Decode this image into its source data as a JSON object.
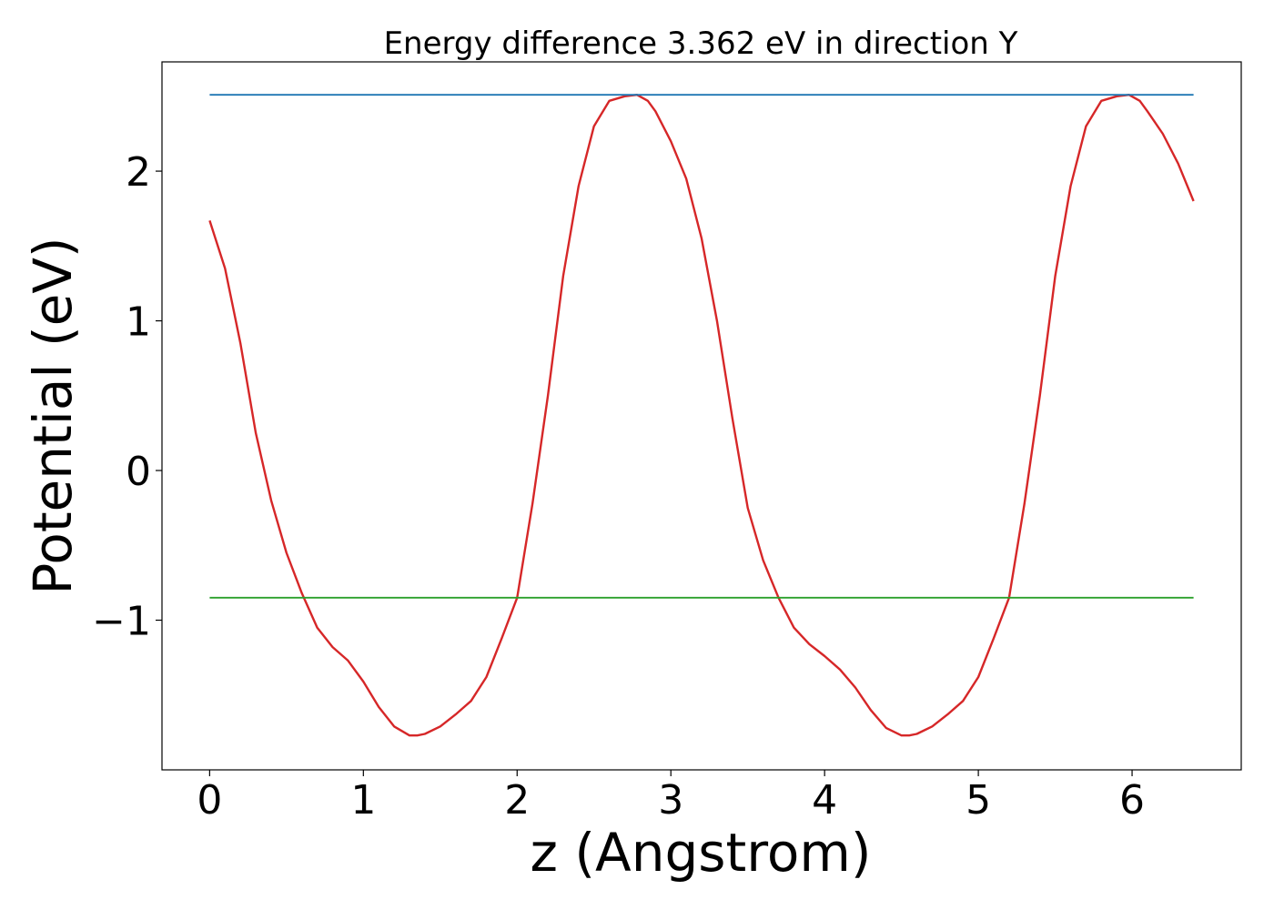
{
  "chart_data": {
    "type": "line",
    "title": "Energy difference 3.362 eV in direction Y",
    "xlabel": "z (Angstrom)",
    "ylabel": "Potential (eV)",
    "xlim": [
      -0.31,
      6.71
    ],
    "ylim": [
      -2.0,
      2.73
    ],
    "grid": false,
    "xticks": [
      0,
      1,
      2,
      3,
      4,
      5,
      6
    ],
    "xtick_labels": [
      "0",
      "1",
      "2",
      "3",
      "4",
      "5",
      "6"
    ],
    "yticks": [
      -1,
      0,
      1,
      2
    ],
    "ytick_labels": [
      "−1",
      "0",
      "1",
      "2"
    ],
    "series": [
      {
        "color": "#d62728",
        "x": [
          0.0,
          0.1,
          0.2,
          0.3,
          0.4,
          0.5,
          0.6,
          0.7,
          0.8,
          0.9,
          1.0,
          1.1,
          1.2,
          1.3,
          1.35,
          1.4,
          1.5,
          1.6,
          1.7,
          1.8,
          1.9,
          2.0,
          2.1,
          2.2,
          2.3,
          2.4,
          2.5,
          2.6,
          2.7,
          2.78,
          2.85,
          2.9,
          3.0,
          3.1,
          3.2,
          3.3,
          3.4,
          3.5,
          3.6,
          3.7,
          3.8,
          3.9,
          4.0,
          4.1,
          4.2,
          4.3,
          4.4,
          4.5,
          4.55,
          4.6,
          4.7,
          4.8,
          4.9,
          5.0,
          5.1,
          5.2,
          5.3,
          5.4,
          5.5,
          5.6,
          5.7,
          5.8,
          5.9,
          5.98,
          6.05,
          6.1,
          6.2,
          6.3,
          6.4
        ],
        "y": [
          1.67,
          1.35,
          0.85,
          0.25,
          -0.2,
          -0.55,
          -0.82,
          -1.05,
          -1.18,
          -1.27,
          -1.41,
          -1.58,
          -1.71,
          -1.77,
          -1.77,
          -1.76,
          -1.71,
          -1.63,
          -1.54,
          -1.38,
          -1.12,
          -0.85,
          -0.22,
          0.5,
          1.3,
          1.9,
          2.3,
          2.47,
          2.5,
          2.51,
          2.47,
          2.4,
          2.2,
          1.95,
          1.55,
          1.0,
          0.35,
          -0.25,
          -0.6,
          -0.85,
          -1.05,
          -1.16,
          -1.24,
          -1.33,
          -1.45,
          -1.6,
          -1.72,
          -1.77,
          -1.77,
          -1.76,
          -1.71,
          -1.63,
          -1.54,
          -1.38,
          -1.12,
          -0.85,
          -0.22,
          0.5,
          1.3,
          1.9,
          2.3,
          2.47,
          2.5,
          2.51,
          2.47,
          2.4,
          2.25,
          2.05,
          1.8
        ]
      },
      {
        "color": "#1f77b4",
        "x": [
          0.0,
          6.4
        ],
        "y": [
          2.51,
          2.51
        ]
      },
      {
        "color": "#2ca02c",
        "x": [
          0.0,
          6.4
        ],
        "y": [
          -0.85,
          -0.85
        ]
      }
    ]
  }
}
